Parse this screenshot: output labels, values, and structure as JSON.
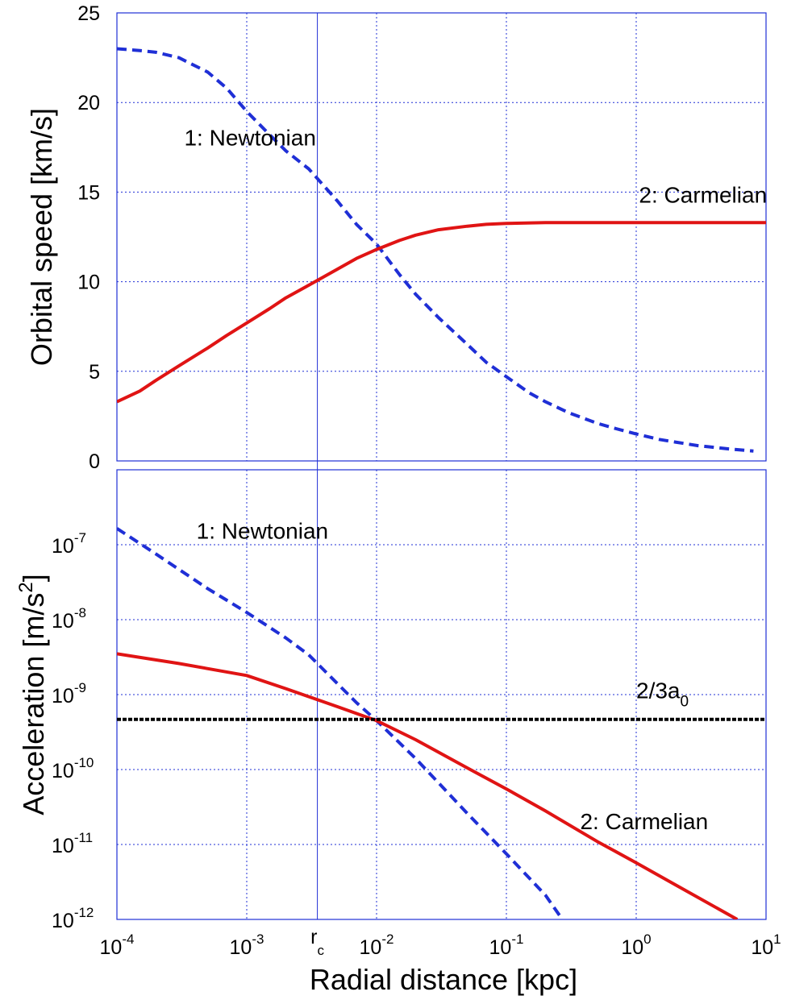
{
  "figure": {
    "xlabel": "Radial distance [kpc]",
    "x_ticks": [
      {
        "value": 0.0001,
        "base": "10",
        "exp": "-4"
      },
      {
        "value": 0.001,
        "base": "10",
        "exp": "-3"
      },
      {
        "value": 0.01,
        "base": "10",
        "exp": "-2"
      },
      {
        "value": 0.1,
        "base": "10",
        "exp": "-1"
      },
      {
        "value": 1,
        "base": "10",
        "exp": "0"
      },
      {
        "value": 10,
        "base": "10",
        "exp": "1"
      }
    ],
    "rc_marker": {
      "value": 0.0035,
      "label": "r",
      "sub": "c"
    }
  },
  "chart_data": [
    {
      "type": "line",
      "xscale": "log",
      "xlim": [
        0.0001,
        10
      ],
      "ylim": [
        0,
        25
      ],
      "ylabel": "Orbital speed [km/s]",
      "yticks": [
        0,
        5,
        10,
        15,
        20,
        25
      ],
      "grid": true,
      "series": [
        {
          "name": "1: Newtonian",
          "style": "dashed",
          "color": "#1f2fd6",
          "label_at": [
            0.00033,
            17.6
          ],
          "points": [
            [
              0.0001,
              23.0
            ],
            [
              0.00015,
              22.9
            ],
            [
              0.0002,
              22.8
            ],
            [
              0.0003,
              22.5
            ],
            [
              0.0005,
              21.7
            ],
            [
              0.0007,
              20.8
            ],
            [
              0.001,
              19.5
            ],
            [
              0.0015,
              18.2
            ],
            [
              0.002,
              17.3
            ],
            [
              0.003,
              16.3
            ],
            [
              0.005,
              14.5
            ],
            [
              0.007,
              13.2
            ],
            [
              0.01,
              12.1
            ],
            [
              0.015,
              10.4
            ],
            [
              0.02,
              9.3
            ],
            [
              0.03,
              8.0
            ],
            [
              0.05,
              6.5
            ],
            [
              0.07,
              5.5
            ],
            [
              0.1,
              4.7
            ],
            [
              0.15,
              3.8
            ],
            [
              0.2,
              3.3
            ],
            [
              0.3,
              2.7
            ],
            [
              0.5,
              2.1
            ],
            [
              0.7,
              1.8
            ],
            [
              1.0,
              1.5
            ],
            [
              1.5,
              1.2
            ],
            [
              2.0,
              1.05
            ],
            [
              3.0,
              0.85
            ],
            [
              5.0,
              0.68
            ],
            [
              8.0,
              0.55
            ]
          ]
        },
        {
          "name": "2: Carmelian",
          "style": "solid",
          "color": "#e01414",
          "label_at": [
            1.05,
            14.4
          ],
          "points": [
            [
              0.0001,
              3.3
            ],
            [
              0.00015,
              3.9
            ],
            [
              0.0002,
              4.5
            ],
            [
              0.0003,
              5.3
            ],
            [
              0.0005,
              6.3
            ],
            [
              0.0007,
              7.0
            ],
            [
              0.001,
              7.7
            ],
            [
              0.0015,
              8.5
            ],
            [
              0.002,
              9.1
            ],
            [
              0.003,
              9.8
            ],
            [
              0.005,
              10.7
            ],
            [
              0.007,
              11.3
            ],
            [
              0.01,
              11.8
            ],
            [
              0.015,
              12.3
            ],
            [
              0.02,
              12.6
            ],
            [
              0.03,
              12.9
            ],
            [
              0.05,
              13.1
            ],
            [
              0.07,
              13.2
            ],
            [
              0.1,
              13.25
            ],
            [
              0.2,
              13.3
            ],
            [
              0.5,
              13.3
            ],
            [
              1.0,
              13.3
            ],
            [
              3.0,
              13.3
            ],
            [
              10.0,
              13.3
            ]
          ]
        }
      ]
    },
    {
      "type": "line",
      "xscale": "log",
      "yscale": "log",
      "xlim": [
        0.0001,
        10
      ],
      "ylim": [
        1e-12,
        1e-06
      ],
      "ylabel": "Acceleration [m/s2]",
      "ylabel_parts": {
        "main": "Acceleration [m/s",
        "sup": "2",
        "close": "]"
      },
      "yticks": [
        {
          "value": 1e-12,
          "base": "10",
          "exp": "-12"
        },
        {
          "value": 1e-11,
          "base": "10",
          "exp": "-11"
        },
        {
          "value": 1e-10,
          "base": "10",
          "exp": "-10"
        },
        {
          "value": 1e-09,
          "base": "10",
          "exp": "-9"
        },
        {
          "value": 1e-08,
          "base": "10",
          "exp": "-8"
        },
        {
          "value": 1e-07,
          "base": "10",
          "exp": "-7"
        }
      ],
      "grid": true,
      "series": [
        {
          "name": "1: Newtonian",
          "style": "dashed",
          "color": "#1f2fd6",
          "label_at": [
            0.00041,
            1.2e-07
          ],
          "points": [
            [
              0.0001,
              1.65e-07
            ],
            [
              0.0002,
              7.5e-08
            ],
            [
              0.0005,
              2.6e-08
            ],
            [
              0.001,
              1.25e-08
            ],
            [
              0.002,
              5.7e-09
            ],
            [
              0.003,
              3.4e-09
            ],
            [
              0.005,
              1.4e-09
            ],
            [
              0.007,
              7.8e-10
            ],
            [
              0.01,
              4.5e-10
            ],
            [
              0.02,
              1.4e-10
            ],
            [
              0.05,
              2.6e-11
            ],
            [
              0.1,
              7.5e-12
            ],
            [
              0.2,
              2.1e-12
            ],
            [
              0.27,
              1e-12
            ]
          ]
        },
        {
          "name": "2: Carmelian",
          "style": "solid",
          "color": "#e01414",
          "label_at": [
            0.37,
            1.6e-11
          ],
          "points": [
            [
              0.0001,
              3.5e-09
            ],
            [
              0.0003,
              2.6e-09
            ],
            [
              0.001,
              1.8e-09
            ],
            [
              0.002,
              1.2e-09
            ],
            [
              0.005,
              6.9e-10
            ],
            [
              0.01,
              4.5e-10
            ],
            [
              0.02,
              2.5e-10
            ],
            [
              0.05,
              1.05e-10
            ],
            [
              0.1,
              5.5e-11
            ],
            [
              0.2,
              2.8e-11
            ],
            [
              0.5,
              1.1e-11
            ],
            [
              1.0,
              5.7e-12
            ],
            [
              2.0,
              2.9e-12
            ],
            [
              6.0,
              1e-12
            ]
          ]
        },
        {
          "name": "2/3a0",
          "label_parts": {
            "main": "2/3a",
            "sub": "0"
          },
          "style": "dotted",
          "color": "#000000",
          "label_at": [
            1.0,
            9e-10
          ],
          "points": [
            [
              0.0001,
              4.67e-10
            ],
            [
              10,
              4.67e-10
            ]
          ]
        }
      ]
    }
  ]
}
